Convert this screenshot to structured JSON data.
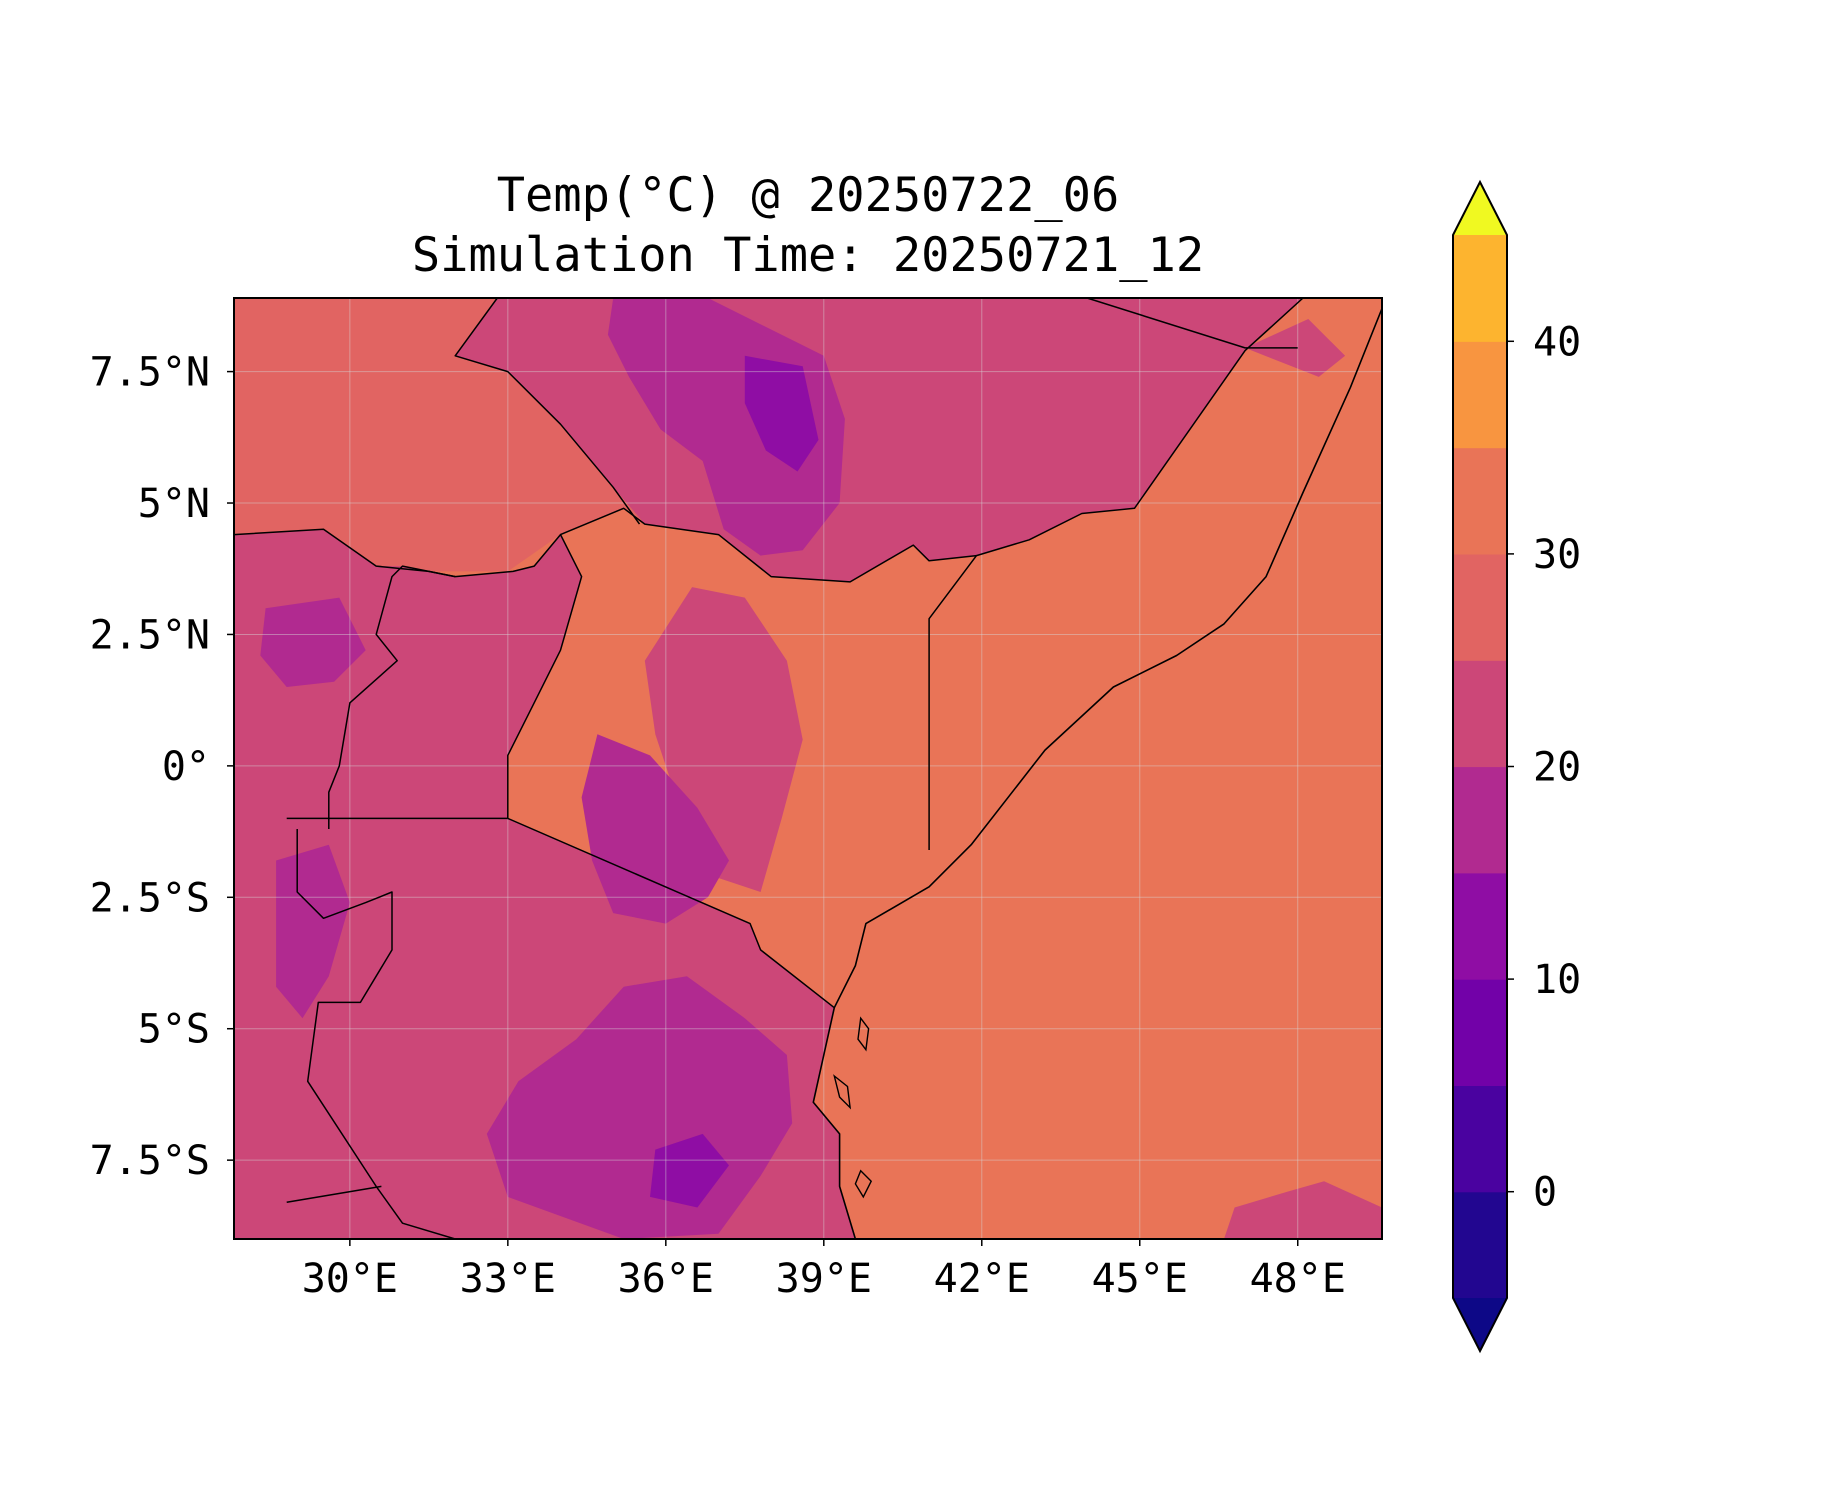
{
  "title": {
    "line1": "Temp(°C) @ 20250722_06",
    "line2": "Simulation Time: 20250721_12"
  },
  "map": {
    "lon_range": [
      27.8,
      49.6
    ],
    "lat_range": [
      -9.0,
      8.9
    ],
    "x_ticks": [
      {
        "value": 30,
        "label": "30°E"
      },
      {
        "value": 33,
        "label": "33°E"
      },
      {
        "value": 36,
        "label": "36°E"
      },
      {
        "value": 39,
        "label": "39°E"
      },
      {
        "value": 42,
        "label": "42°E"
      },
      {
        "value": 45,
        "label": "45°E"
      },
      {
        "value": 48,
        "label": "48°E"
      }
    ],
    "y_ticks": [
      {
        "value": 7.5,
        "label": "7.5°N"
      },
      {
        "value": 5,
        "label": "5°N"
      },
      {
        "value": 2.5,
        "label": "2.5°N"
      },
      {
        "value": 0,
        "label": "0°"
      },
      {
        "value": -2.5,
        "label": "2.5°S"
      },
      {
        "value": -5,
        "label": "5°S"
      },
      {
        "value": -7.5,
        "label": "7.5°S"
      }
    ],
    "background_level_color": "#e97457",
    "coastline": [
      [
        49.6,
        8.7
      ],
      [
        49.0,
        7.2
      ],
      [
        48.1,
        5.2
      ],
      [
        47.4,
        3.6
      ],
      [
        46.6,
        2.7
      ],
      [
        45.7,
        2.1
      ],
      [
        44.5,
        1.5
      ],
      [
        43.2,
        0.3
      ],
      [
        41.8,
        -1.5
      ],
      [
        41.0,
        -2.3
      ],
      [
        39.8,
        -3.0
      ],
      [
        39.6,
        -3.8
      ],
      [
        39.2,
        -4.6
      ],
      [
        39.0,
        -5.5
      ],
      [
        38.8,
        -6.4
      ],
      [
        39.3,
        -7.0
      ],
      [
        39.3,
        -8.0
      ],
      [
        39.6,
        -9.0
      ]
    ],
    "islands": [
      [
        [
          39.7,
          -4.8
        ],
        [
          39.85,
          -5.0
        ],
        [
          39.8,
          -5.4
        ],
        [
          39.65,
          -5.2
        ]
      ],
      [
        [
          39.2,
          -5.9
        ],
        [
          39.45,
          -6.1
        ],
        [
          39.5,
          -6.5
        ],
        [
          39.3,
          -6.3
        ]
      ],
      [
        [
          39.7,
          -7.7
        ],
        [
          39.9,
          -7.9
        ],
        [
          39.75,
          -8.2
        ],
        [
          39.6,
          -7.95
        ]
      ]
    ],
    "borders": [
      [
        [
          41.0,
          -1.6
        ],
        [
          41.0,
          2.8
        ],
        [
          41.9,
          4.0
        ],
        [
          42.9,
          4.3
        ],
        [
          43.9,
          4.8
        ],
        [
          44.9,
          4.9
        ],
        [
          47.0,
          7.9
        ],
        [
          48.1,
          8.9
        ]
      ],
      [
        [
          44.0,
          8.9
        ],
        [
          47.0,
          7.95
        ],
        [
          48.0,
          7.95
        ]
      ],
      [
        [
          33.0,
          -1.0
        ],
        [
          37.6,
          -3.0
        ],
        [
          37.8,
          -3.5
        ],
        [
          39.2,
          -4.6
        ]
      ],
      [
        [
          28.8,
          -1.0
        ],
        [
          30.5,
          -1.0
        ],
        [
          33.0,
          -1.0
        ]
      ],
      [
        [
          33.0,
          -1.0
        ],
        [
          33.0,
          0.2
        ],
        [
          33.5,
          1.2
        ],
        [
          34.0,
          2.2
        ],
        [
          34.4,
          3.6
        ],
        [
          34.0,
          4.4
        ],
        [
          33.5,
          3.8
        ],
        [
          33.1,
          3.7
        ],
        [
          32.0,
          3.6
        ],
        [
          31.0,
          3.8
        ],
        [
          30.8,
          3.6
        ],
        [
          30.5,
          2.5
        ],
        [
          30.9,
          2.0
        ],
        [
          30.0,
          1.2
        ],
        [
          29.8,
          0.0
        ],
        [
          29.6,
          -0.5
        ],
        [
          29.6,
          -1.2
        ]
      ],
      [
        [
          34.0,
          4.4
        ],
        [
          35.2,
          4.9
        ],
        [
          35.6,
          4.6
        ],
        [
          37.0,
          4.4
        ],
        [
          38.0,
          3.6
        ],
        [
          39.5,
          3.5
        ],
        [
          40.7,
          4.2
        ],
        [
          41.0,
          3.9
        ],
        [
          41.9,
          4.0
        ]
      ],
      [
        [
          27.8,
          4.4
        ],
        [
          29.5,
          4.5
        ],
        [
          30.5,
          3.8
        ],
        [
          31.5,
          3.7
        ],
        [
          32.0,
          3.6
        ]
      ],
      [
        [
          32.8,
          8.9
        ],
        [
          32.0,
          7.8
        ],
        [
          33.0,
          7.5
        ],
        [
          34.0,
          6.5
        ],
        [
          35.0,
          5.3
        ],
        [
          35.5,
          4.6
        ]
      ],
      [
        [
          29.0,
          -1.2
        ],
        [
          29.0,
          -2.4
        ],
        [
          29.5,
          -2.9
        ],
        [
          30.3,
          -2.6
        ],
        [
          30.8,
          -2.4
        ],
        [
          30.8,
          -3.5
        ],
        [
          30.2,
          -4.5
        ],
        [
          29.4,
          -4.5
        ],
        [
          29.2,
          -6.0
        ],
        [
          30.5,
          -8.0
        ],
        [
          31.0,
          -8.7
        ],
        [
          32.0,
          -9.0
        ]
      ],
      [
        [
          28.8,
          -8.3
        ],
        [
          30.6,
          -8.0
        ]
      ]
    ]
  },
  "colorbar": {
    "levels": [
      -5,
      0,
      5,
      10,
      15,
      20,
      25,
      30,
      35,
      40,
      45
    ],
    "colors": [
      "#220690",
      "#4a02a0",
      "#7201a8",
      "#8f0da4",
      "#b12a90",
      "#cc4778",
      "#e16462",
      "#e97457",
      "#f89540",
      "#fdb42f",
      "#f3e21f"
    ],
    "under_color": "#0d0887",
    "over_color": "#f0f921",
    "ticks": [
      {
        "value": 0,
        "label": "0"
      },
      {
        "value": 10,
        "label": "10"
      },
      {
        "value": 20,
        "label": "20"
      },
      {
        "value": 30,
        "label": "30"
      },
      {
        "value": 40,
        "label": "40"
      }
    ]
  },
  "chart_data": {
    "type": "heatmap",
    "title": "Temp(°C) @ 20250722_06\nSimulation Time: 20250721_12",
    "xlabel": "",
    "ylabel": "",
    "xlim": [
      27.8,
      49.6
    ],
    "ylim": [
      -9.0,
      8.9
    ],
    "x_tick_labels": [
      "30°E",
      "33°E",
      "36°E",
      "39°E",
      "42°E",
      "45°E",
      "48°E"
    ],
    "y_tick_labels": [
      "7.5°N",
      "5°N",
      "2.5°N",
      "0°",
      "2.5°S",
      "5°S",
      "7.5°S"
    ],
    "colorbar_range": [
      -5,
      45
    ],
    "colorbar_ticks": [
      0,
      10,
      20,
      30,
      40
    ],
    "grid": true,
    "regions": [
      {
        "temp_range": [
          25,
          30
        ],
        "polygon": [
          [
            27.8,
            8.9
          ],
          [
            27.8,
            4.4
          ],
          [
            29.5,
            4.5
          ],
          [
            30.5,
            3.8
          ],
          [
            31.5,
            3.7
          ],
          [
            33.0,
            3.7
          ],
          [
            34.0,
            4.4
          ],
          [
            35.2,
            4.9
          ],
          [
            35.6,
            4.6
          ],
          [
            35.0,
            5.3
          ],
          [
            34.0,
            6.5
          ],
          [
            33.0,
            7.5
          ],
          [
            32.0,
            7.8
          ],
          [
            32.8,
            8.9
          ]
        ]
      },
      {
        "temp_range": [
          20,
          25
        ],
        "polygon": [
          [
            27.8,
            4.4
          ],
          [
            29.5,
            4.5
          ],
          [
            30.5,
            3.8
          ],
          [
            31.0,
            3.8
          ],
          [
            32.0,
            3.6
          ],
          [
            33.1,
            3.7
          ],
          [
            33.5,
            3.8
          ],
          [
            34.0,
            4.4
          ],
          [
            34.4,
            3.6
          ],
          [
            34.0,
            2.2
          ],
          [
            33.5,
            1.2
          ],
          [
            33.0,
            0.2
          ],
          [
            33.0,
            -1.0
          ],
          [
            37.6,
            -3.0
          ],
          [
            37.8,
            -3.5
          ],
          [
            39.2,
            -4.6
          ],
          [
            39.0,
            -5.5
          ],
          [
            38.8,
            -6.4
          ],
          [
            39.3,
            -7.0
          ],
          [
            39.3,
            -8.0
          ],
          [
            39.6,
            -9.0
          ],
          [
            27.8,
            -9.0
          ]
        ]
      },
      {
        "temp_range": [
          20,
          25
        ],
        "polygon": [
          [
            32.8,
            8.9
          ],
          [
            32.0,
            7.8
          ],
          [
            33.0,
            7.5
          ],
          [
            34.0,
            6.5
          ],
          [
            35.0,
            5.3
          ],
          [
            35.6,
            4.6
          ],
          [
            37.0,
            4.4
          ],
          [
            38.0,
            3.6
          ],
          [
            39.5,
            3.5
          ],
          [
            40.7,
            4.2
          ],
          [
            41.0,
            3.9
          ],
          [
            41.9,
            4.0
          ],
          [
            42.9,
            4.3
          ],
          [
            43.9,
            4.8
          ],
          [
            44.9,
            4.9
          ],
          [
            47.0,
            7.9
          ],
          [
            48.1,
            8.9
          ]
        ]
      },
      {
        "temp_range": [
          20,
          25
        ],
        "polygon": [
          [
            36.5,
            3.4
          ],
          [
            37.5,
            3.2
          ],
          [
            38.3,
            2.0
          ],
          [
            38.6,
            0.5
          ],
          [
            38.2,
            -1.0
          ],
          [
            37.8,
            -2.4
          ],
          [
            36.6,
            -2.0
          ],
          [
            36.2,
            -0.6
          ],
          [
            35.8,
            0.6
          ],
          [
            35.6,
            2.0
          ]
        ]
      },
      {
        "temp_range": [
          20,
          25
        ],
        "polygon": [
          [
            47.0,
            7.95
          ],
          [
            48.4,
            7.4
          ],
          [
            48.9,
            7.8
          ],
          [
            48.2,
            8.5
          ]
        ]
      },
      {
        "temp_range": [
          20,
          25
        ],
        "polygon": [
          [
            46.8,
            -8.4
          ],
          [
            47.8,
            -8.1
          ],
          [
            48.5,
            -7.9
          ],
          [
            49.6,
            -8.4
          ],
          [
            49.6,
            -9.0
          ],
          [
            46.6,
            -9.0
          ]
        ]
      },
      {
        "temp_range": [
          15,
          20
        ],
        "polygon": [
          [
            35.0,
            8.9
          ],
          [
            36.8,
            8.9
          ],
          [
            38.0,
            8.3
          ],
          [
            39.0,
            7.8
          ],
          [
            39.4,
            6.6
          ],
          [
            39.3,
            5.0
          ],
          [
            38.6,
            4.1
          ],
          [
            37.8,
            4.0
          ],
          [
            37.1,
            4.5
          ],
          [
            36.7,
            5.8
          ],
          [
            35.9,
            6.4
          ],
          [
            35.3,
            7.4
          ],
          [
            34.9,
            8.2
          ]
        ]
      },
      {
        "temp_range": [
          15,
          20
        ],
        "polygon": [
          [
            34.7,
            0.6
          ],
          [
            35.7,
            0.2
          ],
          [
            36.6,
            -0.8
          ],
          [
            37.2,
            -1.8
          ],
          [
            36.8,
            -2.5
          ],
          [
            36.0,
            -3.0
          ],
          [
            35.0,
            -2.8
          ],
          [
            34.6,
            -1.8
          ],
          [
            34.4,
            -0.6
          ]
        ]
      },
      {
        "temp_range": [
          15,
          20
        ],
        "polygon": [
          [
            35.2,
            -4.2
          ],
          [
            36.4,
            -4.0
          ],
          [
            37.5,
            -4.8
          ],
          [
            38.3,
            -5.5
          ],
          [
            38.4,
            -6.8
          ],
          [
            37.8,
            -7.8
          ],
          [
            37.0,
            -8.9
          ],
          [
            35.2,
            -9.0
          ],
          [
            33.0,
            -8.2
          ],
          [
            32.6,
            -7.0
          ],
          [
            33.2,
            -6.0
          ],
          [
            34.3,
            -5.2
          ]
        ]
      },
      {
        "temp_range": [
          15,
          20
        ],
        "polygon": [
          [
            28.4,
            3.0
          ],
          [
            29.8,
            3.2
          ],
          [
            30.3,
            2.2
          ],
          [
            29.7,
            1.6
          ],
          [
            28.8,
            1.5
          ],
          [
            28.3,
            2.1
          ]
        ]
      },
      {
        "temp_range": [
          15,
          20
        ],
        "polygon": [
          [
            28.6,
            -1.8
          ],
          [
            29.6,
            -1.5
          ],
          [
            30.0,
            -2.6
          ],
          [
            29.6,
            -4.0
          ],
          [
            29.1,
            -4.8
          ],
          [
            28.6,
            -4.2
          ]
        ]
      },
      {
        "temp_range": [
          10,
          15
        ],
        "polygon": [
          [
            37.5,
            7.8
          ],
          [
            38.6,
            7.6
          ],
          [
            38.9,
            6.2
          ],
          [
            38.5,
            5.6
          ],
          [
            37.9,
            6.0
          ],
          [
            37.5,
            6.9
          ]
        ]
      },
      {
        "temp_range": [
          10,
          15
        ],
        "polygon": [
          [
            35.8,
            -7.3
          ],
          [
            36.7,
            -7.0
          ],
          [
            37.2,
            -7.6
          ],
          [
            36.6,
            -8.4
          ],
          [
            35.7,
            -8.2
          ]
        ]
      }
    ]
  }
}
